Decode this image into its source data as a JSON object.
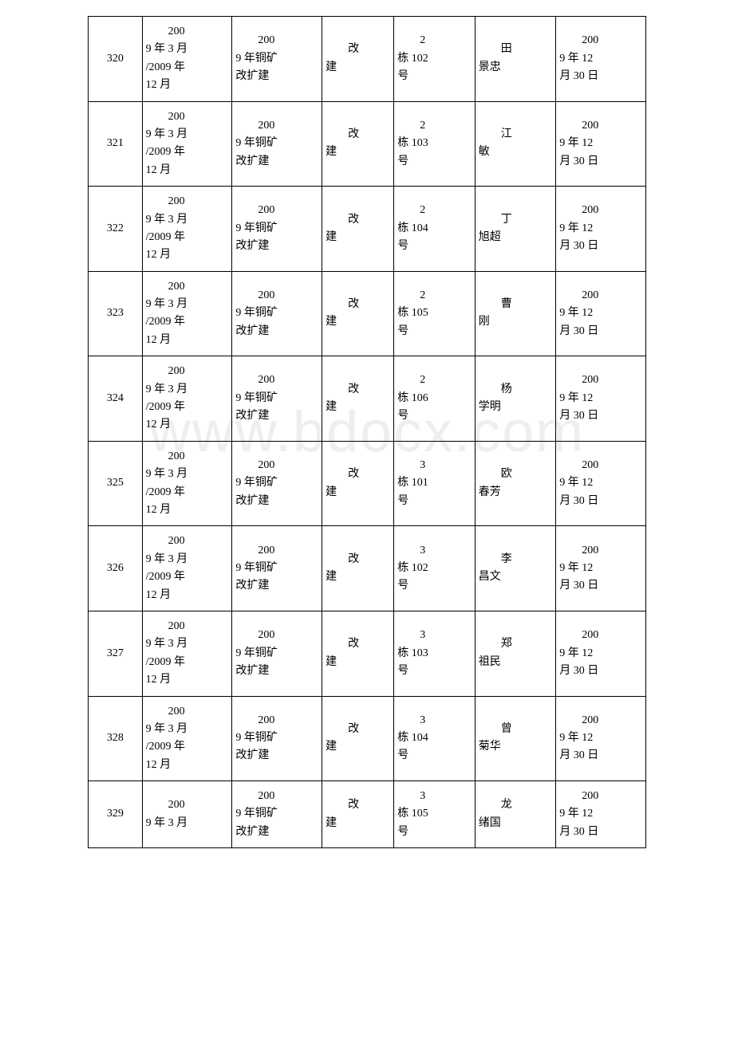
{
  "table": {
    "columns_count": 7,
    "column_widths": [
      "60px",
      "100px",
      "100px",
      "80px",
      "90px",
      "90px",
      "100px"
    ],
    "border_color": "#000000",
    "background_color": "#ffffff",
    "text_color": "#000000",
    "font_size": 14,
    "font_family": "SimSun",
    "rows": [
      {
        "id": "320",
        "date_range": "2009 年 3 月/2009 年12 月",
        "project": "2009 年铜矿改扩建",
        "type": "改建",
        "location": "2栋 102号",
        "person": "田景忠",
        "completion": "2009 年 12月 30 日"
      },
      {
        "id": "321",
        "date_range": "2009 年 3 月/2009 年12 月",
        "project": "2009 年铜矿改扩建",
        "type": "改建",
        "location": "2栋 103号",
        "person": "江敏",
        "completion": "2009 年 12月 30 日"
      },
      {
        "id": "322",
        "date_range": "2009 年 3 月/2009 年12 月",
        "project": "2009 年铜矿改扩建",
        "type": "改建",
        "location": "2栋 104号",
        "person": "丁旭超",
        "completion": "2009 年 12月 30 日"
      },
      {
        "id": "323",
        "date_range": "2009 年 3 月/2009 年12 月",
        "project": "2009 年铜矿改扩建",
        "type": "改建",
        "location": "2栋 105号",
        "person": "曹刚",
        "completion": "2009 年 12月 30 日"
      },
      {
        "id": "324",
        "date_range": "2009 年 3 月/2009 年12 月",
        "project": "2009 年铜矿改扩建",
        "type": "改建",
        "location": "2栋 106号",
        "person": "杨学明",
        "completion": "2009 年 12月 30 日"
      },
      {
        "id": "325",
        "date_range": "2009 年 3 月/2009 年12 月",
        "project": "2009 年铜矿改扩建",
        "type": "改建",
        "location": "3栋 101号",
        "person": "欧春芳",
        "completion": "2009 年 12月 30 日"
      },
      {
        "id": "326",
        "date_range": "2009 年 3 月/2009 年12 月",
        "project": "2009 年铜矿改扩建",
        "type": "改建",
        "location": "3栋 102号",
        "person": "李昌文",
        "completion": "2009 年 12月 30 日"
      },
      {
        "id": "327",
        "date_range": "2009 年 3 月/2009 年12 月",
        "project": "2009 年铜矿改扩建",
        "type": "改建",
        "location": "3栋 103号",
        "person": "郑祖民",
        "completion": "2009 年 12月 30 日"
      },
      {
        "id": "328",
        "date_range": "2009 年 3 月/2009 年12 月",
        "project": "2009 年铜矿改扩建",
        "type": "改建",
        "location": "3栋 104号",
        "person": "曾菊华",
        "completion": "2009 年 12月 30 日"
      },
      {
        "id": "329",
        "date_range": "2009 年 3 月",
        "project": "2009 年铜矿改扩建",
        "type": "改建",
        "location": "3栋 105号",
        "person": "龙绪国",
        "completion": "2009 年 12月 30 日"
      }
    ]
  },
  "watermark": {
    "text": "www.bdocx.com",
    "color": "#eeeeee",
    "font_size": 72
  }
}
